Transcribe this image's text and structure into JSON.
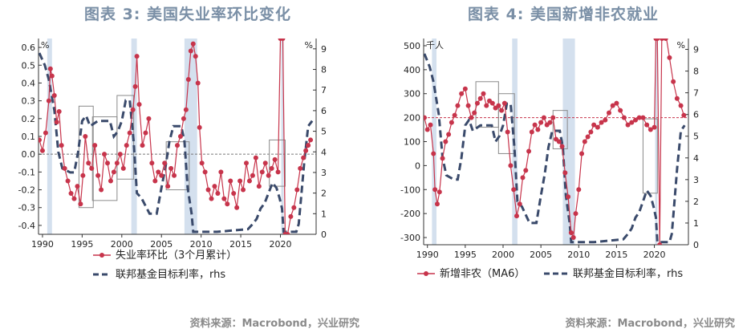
{
  "colors": {
    "red": "#c7344b",
    "navy": "#3a4a6b",
    "band": "#c9d8ea",
    "title": "#7a8fa6"
  },
  "panels": [
    {
      "title": "图表 3: 美国失业率环比变化",
      "source": "资料来源：Macrobond，兴业研究"
    },
    {
      "title": "图表 4: 美国新增非农就业",
      "source": "资料来源：Macrobond，兴业研究"
    }
  ],
  "chart_data": [
    {
      "type": "line",
      "left_unit_label": "%",
      "right_unit_label": "%",
      "xlim": [
        1989.5,
        2024.5
      ],
      "ylim": [
        -0.45,
        0.65
      ],
      "y2lim": [
        0,
        9.5
      ],
      "x_ticks": [
        1990,
        1995,
        2000,
        2005,
        2010,
        2015,
        2020
      ],
      "y_ticks": [
        "0.6",
        "0.5",
        "0.4",
        "0.3",
        "0.2",
        "0.1",
        "0.0",
        "-0.1",
        "-0.2",
        "-0.3",
        "-0.4"
      ],
      "y2_ticks": [
        "9",
        "8",
        "7",
        "6",
        "5",
        "4",
        "3",
        "2",
        "1",
        "0"
      ],
      "recession_bands": [
        [
          1990.6,
          1991.2
        ],
        [
          2001.2,
          2001.9
        ],
        [
          2007.9,
          2009.5
        ],
        [
          2020.1,
          2020.4
        ]
      ],
      "highlight_boxes": [
        [
          1994.6,
          1996.4,
          -0.3,
          0.27
        ],
        [
          1996.3,
          1999.4,
          -0.26,
          0.21
        ],
        [
          1999.4,
          2001.5,
          -0.14,
          0.33
        ],
        [
          2005.6,
          2008.5,
          -0.2,
          0.07
        ],
        [
          2018.6,
          2020.6,
          -0.18,
          0.08
        ]
      ],
      "reference_line": {
        "axis": "left",
        "y": 0.0
      },
      "series": [
        {
          "name": "失业率环比（3个月累计）",
          "axis": "left",
          "style": "red-dots",
          "x": [
            1989.6,
            1990.0,
            1990.4,
            1990.8,
            1991.0,
            1991.2,
            1991.5,
            1991.8,
            1992.1,
            1992.4,
            1992.8,
            1993.2,
            1993.6,
            1994.0,
            1994.4,
            1994.8,
            1995.1,
            1995.4,
            1995.8,
            1996.2,
            1996.6,
            1997.0,
            1997.4,
            1997.8,
            1998.2,
            1998.6,
            1999.0,
            1999.4,
            1999.8,
            2000.2,
            2000.6,
            2001.0,
            2001.4,
            2001.7,
            2001.9,
            2002.2,
            2002.6,
            2003.0,
            2003.4,
            2003.8,
            2004.2,
            2004.6,
            2005.0,
            2005.4,
            2005.8,
            2006.2,
            2006.6,
            2007.0,
            2007.4,
            2007.8,
            2008.1,
            2008.4,
            2008.7,
            2009.0,
            2009.3,
            2009.6,
            2009.8,
            2010.1,
            2010.5,
            2010.9,
            2011.3,
            2011.7,
            2012.1,
            2012.5,
            2012.9,
            2013.3,
            2013.7,
            2014.1,
            2014.5,
            2014.9,
            2015.3,
            2015.7,
            2016.1,
            2016.5,
            2016.9,
            2017.3,
            2017.7,
            2018.1,
            2018.5,
            2018.9,
            2019.3,
            2019.7,
            2020.0,
            2020.3,
            2020.6,
            2020.9,
            2021.3,
            2021.7,
            2022.1,
            2022.5,
            2022.9,
            2023.2,
            2023.5,
            2023.8
          ],
          "y": [
            0.08,
            0.02,
            0.12,
            0.3,
            0.48,
            0.44,
            0.33,
            0.18,
            0.24,
            0.05,
            -0.08,
            -0.15,
            -0.22,
            -0.25,
            -0.18,
            -0.28,
            -0.12,
            0.1,
            -0.05,
            -0.08,
            0.05,
            -0.12,
            -0.2,
            0.0,
            -0.05,
            -0.15,
            -0.1,
            -0.05,
            0.0,
            -0.08,
            0.05,
            0.12,
            0.25,
            0.38,
            0.55,
            0.28,
            0.05,
            0.12,
            0.2,
            -0.05,
            -0.15,
            -0.1,
            -0.12,
            -0.05,
            -0.18,
            -0.08,
            -0.12,
            0.05,
            0.1,
            0.2,
            0.25,
            0.42,
            0.58,
            0.62,
            0.55,
            0.4,
            0.15,
            -0.05,
            -0.1,
            -0.2,
            -0.25,
            -0.18,
            -0.22,
            -0.1,
            -0.25,
            -0.28,
            -0.15,
            -0.22,
            -0.3,
            -0.15,
            -0.2,
            -0.05,
            -0.15,
            -0.12,
            -0.02,
            -0.18,
            -0.1,
            -0.05,
            -0.12,
            -0.08,
            -0.03,
            -0.1,
            0.65,
            0.65,
            -0.45,
            -0.45,
            -0.35,
            -0.3,
            -0.2,
            -0.08,
            -0.02,
            0.02,
            0.05,
            0.08
          ]
        },
        {
          "name": "联邦基金目标利率，rhs",
          "axis": "right",
          "style": "navy-dashed",
          "x": [
            1989.6,
            1990.3,
            1990.8,
            1991.5,
            1992.0,
            1992.5,
            1993.5,
            1994.0,
            1994.5,
            1995.0,
            1995.5,
            1996.0,
            1997.0,
            1998.5,
            1999.0,
            1999.5,
            2000.0,
            2000.5,
            2001.0,
            2001.5,
            2001.9,
            2002.5,
            2003.5,
            2004.4,
            2005.0,
            2005.5,
            2006.0,
            2006.5,
            2007.5,
            2007.9,
            2008.3,
            2008.8,
            2009.0,
            2012.0,
            2015.9,
            2016.5,
            2017.0,
            2017.5,
            2018.0,
            2018.5,
            2019.0,
            2019.5,
            2019.9,
            2020.2,
            2020.4,
            2022.0,
            2022.3,
            2022.6,
            2023.0,
            2023.5,
            2024.0
          ],
          "y": [
            8.8,
            8.2,
            7.5,
            6.0,
            4.0,
            3.2,
            3.0,
            3.0,
            4.0,
            5.5,
            5.75,
            5.25,
            5.5,
            5.5,
            4.75,
            5.0,
            5.5,
            6.5,
            6.5,
            4.5,
            2.0,
            1.75,
            1.0,
            1.0,
            2.25,
            3.25,
            4.5,
            5.25,
            5.25,
            4.5,
            2.25,
            1.0,
            0.12,
            0.12,
            0.25,
            0.5,
            0.75,
            1.25,
            1.5,
            2.0,
            2.5,
            2.25,
            1.75,
            1.25,
            0.12,
            0.12,
            0.5,
            1.75,
            3.5,
            5.25,
            5.5
          ]
        }
      ]
    },
    {
      "type": "line",
      "left_unit_label": "千人",
      "right_unit_label": "%",
      "xlim": [
        1989.5,
        2024.5
      ],
      "ylim": [
        -330,
        530
      ],
      "y2lim": [
        0,
        9.5
      ],
      "x_ticks": [
        1990,
        1995,
        2000,
        2005,
        2010,
        2015,
        2020
      ],
      "y_ticks": [
        "500",
        "400",
        "300",
        "200",
        "100",
        "0",
        "-100",
        "-200",
        "-300"
      ],
      "y2_ticks": [
        "9",
        "8",
        "7",
        "6",
        "5",
        "4",
        "3",
        "2",
        "1",
        "0"
      ],
      "recession_bands": [
        [
          1990.6,
          1991.2
        ],
        [
          2001.2,
          2001.9
        ],
        [
          2007.9,
          2009.5
        ],
        [
          2020.1,
          2020.4
        ]
      ],
      "highlight_boxes": [
        [
          1996.4,
          1999.4,
          160,
          350
        ],
        [
          1999.4,
          2001.5,
          50,
          300
        ],
        [
          2006.6,
          2008.5,
          70,
          230
        ],
        [
          2018.5,
          2020.4,
          -115,
          195
        ]
      ],
      "reference_line": {
        "axis": "left",
        "y": 200
      },
      "series": [
        {
          "name": "新增非农（MA6）",
          "axis": "left",
          "style": "red-dots",
          "x": [
            1989.6,
            1990.0,
            1990.4,
            1990.8,
            1991.0,
            1991.3,
            1991.6,
            1992.0,
            1992.4,
            1992.8,
            1993.2,
            1993.6,
            1994.0,
            1994.5,
            1995.0,
            1995.4,
            1995.8,
            1996.2,
            1996.6,
            1997.0,
            1997.4,
            1997.8,
            1998.2,
            1998.6,
            1999.0,
            1999.4,
            1999.8,
            2000.2,
            2000.6,
            2001.0,
            2001.4,
            2001.8,
            2002.2,
            2002.6,
            2003.0,
            2003.4,
            2003.8,
            2004.2,
            2004.6,
            2005.0,
            2005.4,
            2005.8,
            2006.2,
            2006.6,
            2007.0,
            2007.4,
            2007.8,
            2008.2,
            2008.6,
            2009.0,
            2009.3,
            2009.6,
            2010.0,
            2010.4,
            2010.8,
            2011.2,
            2011.6,
            2012.0,
            2012.5,
            2013.0,
            2013.5,
            2014.0,
            2014.5,
            2015.0,
            2015.5,
            2016.0,
            2016.5,
            2017.0,
            2017.5,
            2018.0,
            2018.5,
            2019.0,
            2019.5,
            2020.0,
            2020.2,
            2020.4,
            2020.7,
            2021.0,
            2021.5,
            2022.0,
            2022.5,
            2023.0,
            2023.5,
            2023.9
          ],
          "y": [
            200,
            150,
            170,
            50,
            -100,
            -160,
            -110,
            30,
            100,
            130,
            180,
            210,
            250,
            300,
            320,
            250,
            200,
            220,
            260,
            280,
            300,
            250,
            270,
            260,
            240,
            250,
            230,
            260,
            140,
            0,
            -100,
            -210,
            -160,
            -50,
            -20,
            60,
            140,
            170,
            150,
            180,
            200,
            170,
            180,
            200,
            110,
            100,
            80,
            -30,
            -130,
            -280,
            -300,
            -200,
            -100,
            50,
            100,
            120,
            140,
            170,
            160,
            180,
            190,
            220,
            250,
            260,
            230,
            200,
            170,
            180,
            190,
            200,
            200,
            170,
            150,
            160,
            530,
            530,
            -330,
            600,
            550,
            450,
            350,
            280,
            250,
            210
          ]
        },
        {
          "name": "联邦基金目标利率，rhs",
          "axis": "right",
          "style": "navy-dashed",
          "x": [
            1989.6,
            1990.3,
            1990.8,
            1991.5,
            1992.0,
            1992.5,
            1993.5,
            1994.0,
            1994.5,
            1995.0,
            1995.5,
            1996.0,
            1997.0,
            1998.5,
            1999.0,
            1999.5,
            2000.0,
            2000.5,
            2001.0,
            2001.5,
            2001.9,
            2002.5,
            2003.5,
            2004.4,
            2005.0,
            2005.5,
            2006.0,
            2006.5,
            2007.5,
            2007.9,
            2008.3,
            2008.8,
            2009.0,
            2012.0,
            2015.9,
            2016.5,
            2017.0,
            2017.5,
            2018.0,
            2018.5,
            2019.0,
            2019.5,
            2019.9,
            2020.2,
            2020.4,
            2022.0,
            2022.3,
            2022.6,
            2023.0,
            2023.5,
            2024.0
          ],
          "y": [
            8.8,
            8.2,
            7.5,
            6.0,
            4.0,
            3.2,
            3.0,
            3.0,
            4.0,
            5.5,
            5.75,
            5.25,
            5.5,
            5.5,
            4.75,
            5.0,
            5.5,
            6.5,
            6.5,
            4.5,
            2.0,
            1.75,
            1.0,
            1.0,
            2.25,
            3.25,
            4.5,
            5.25,
            5.25,
            4.5,
            2.25,
            1.0,
            0.12,
            0.12,
            0.25,
            0.5,
            0.75,
            1.25,
            1.5,
            2.0,
            2.5,
            2.25,
            1.75,
            1.25,
            0.12,
            0.12,
            0.5,
            1.75,
            3.5,
            5.25,
            5.5
          ]
        }
      ]
    }
  ]
}
